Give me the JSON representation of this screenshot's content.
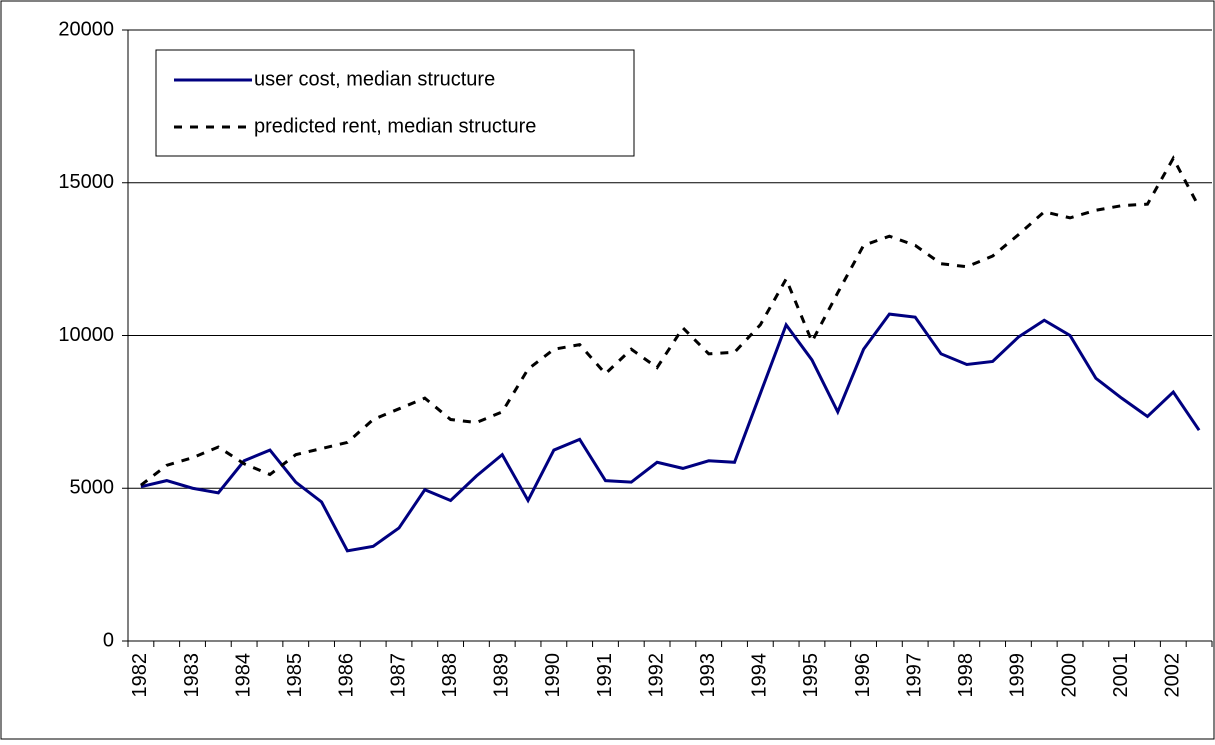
{
  "chart_data": {
    "type": "line",
    "categories": [
      "1982",
      null,
      "1983",
      null,
      "1984",
      null,
      "1985",
      null,
      "1986",
      null,
      "1987",
      null,
      "1988",
      null,
      "1989",
      null,
      "1990",
      null,
      "1991",
      null,
      "1992",
      null,
      "1993",
      null,
      "1994",
      null,
      "1995",
      null,
      "1996",
      null,
      "1997",
      null,
      "1998",
      null,
      "1999",
      null,
      "2000",
      null,
      "2001",
      null,
      "2002",
      null
    ],
    "series": [
      {
        "name": "user cost, median structure",
        "color": "#000080",
        "dash": "solid",
        "values": [
          5050,
          5250,
          5000,
          4850,
          5900,
          6250,
          5200,
          4550,
          2950,
          3100,
          3700,
          4950,
          4600,
          5400,
          6100,
          4600,
          6250,
          6600,
          5250,
          5200,
          5850,
          5650,
          5900,
          5850,
          8100,
          10350,
          9200,
          7500,
          9550,
          10700,
          10600,
          9400,
          9050,
          9150,
          9950,
          10500,
          10000,
          8600,
          7950,
          7350,
          8150,
          6900
        ]
      },
      {
        "name": "predicted rent, median structure",
        "color": "#000000",
        "dash": "dashed",
        "values": [
          5100,
          5750,
          6000,
          6350,
          5800,
          5450,
          6100,
          6300,
          6500,
          7250,
          7600,
          7950,
          7250,
          7150,
          7500,
          8900,
          9550,
          9700,
          8750,
          9550,
          8950,
          10250,
          9400,
          9450,
          10350,
          11850,
          9800,
          11400,
          12950,
          13250,
          12950,
          12350,
          12250,
          12600,
          13300,
          14050,
          13850,
          14100,
          14250,
          14300,
          15800,
          14200
        ]
      }
    ],
    "ylim": [
      0,
      20000
    ],
    "yticks": [
      0,
      5000,
      10000,
      15000,
      20000
    ],
    "grid": true,
    "legend": "top-left"
  }
}
